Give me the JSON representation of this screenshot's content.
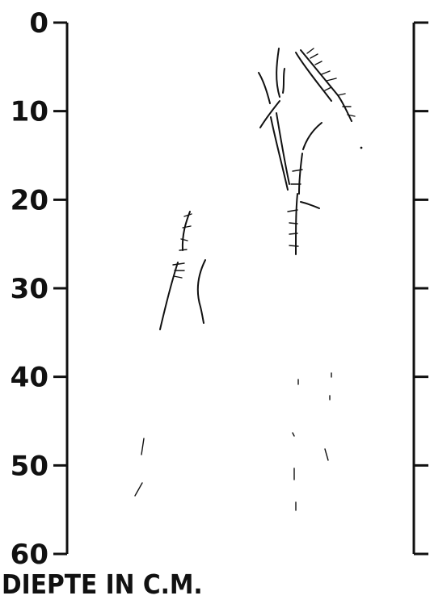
{
  "axis": {
    "ticks": [
      {
        "label": "0",
        "depth": 0
      },
      {
        "label": "10",
        "depth": 10
      },
      {
        "label": "20",
        "depth": 20
      },
      {
        "label": "30",
        "depth": 30
      },
      {
        "label": "40",
        "depth": 40
      },
      {
        "label": "50",
        "depth": 50
      },
      {
        "label": "60",
        "depth": 60
      }
    ],
    "min": 0,
    "max": 60
  },
  "caption": "DIEPTE IN C.M.",
  "colors": {
    "ink": "#111111",
    "background": "#ffffff"
  }
}
